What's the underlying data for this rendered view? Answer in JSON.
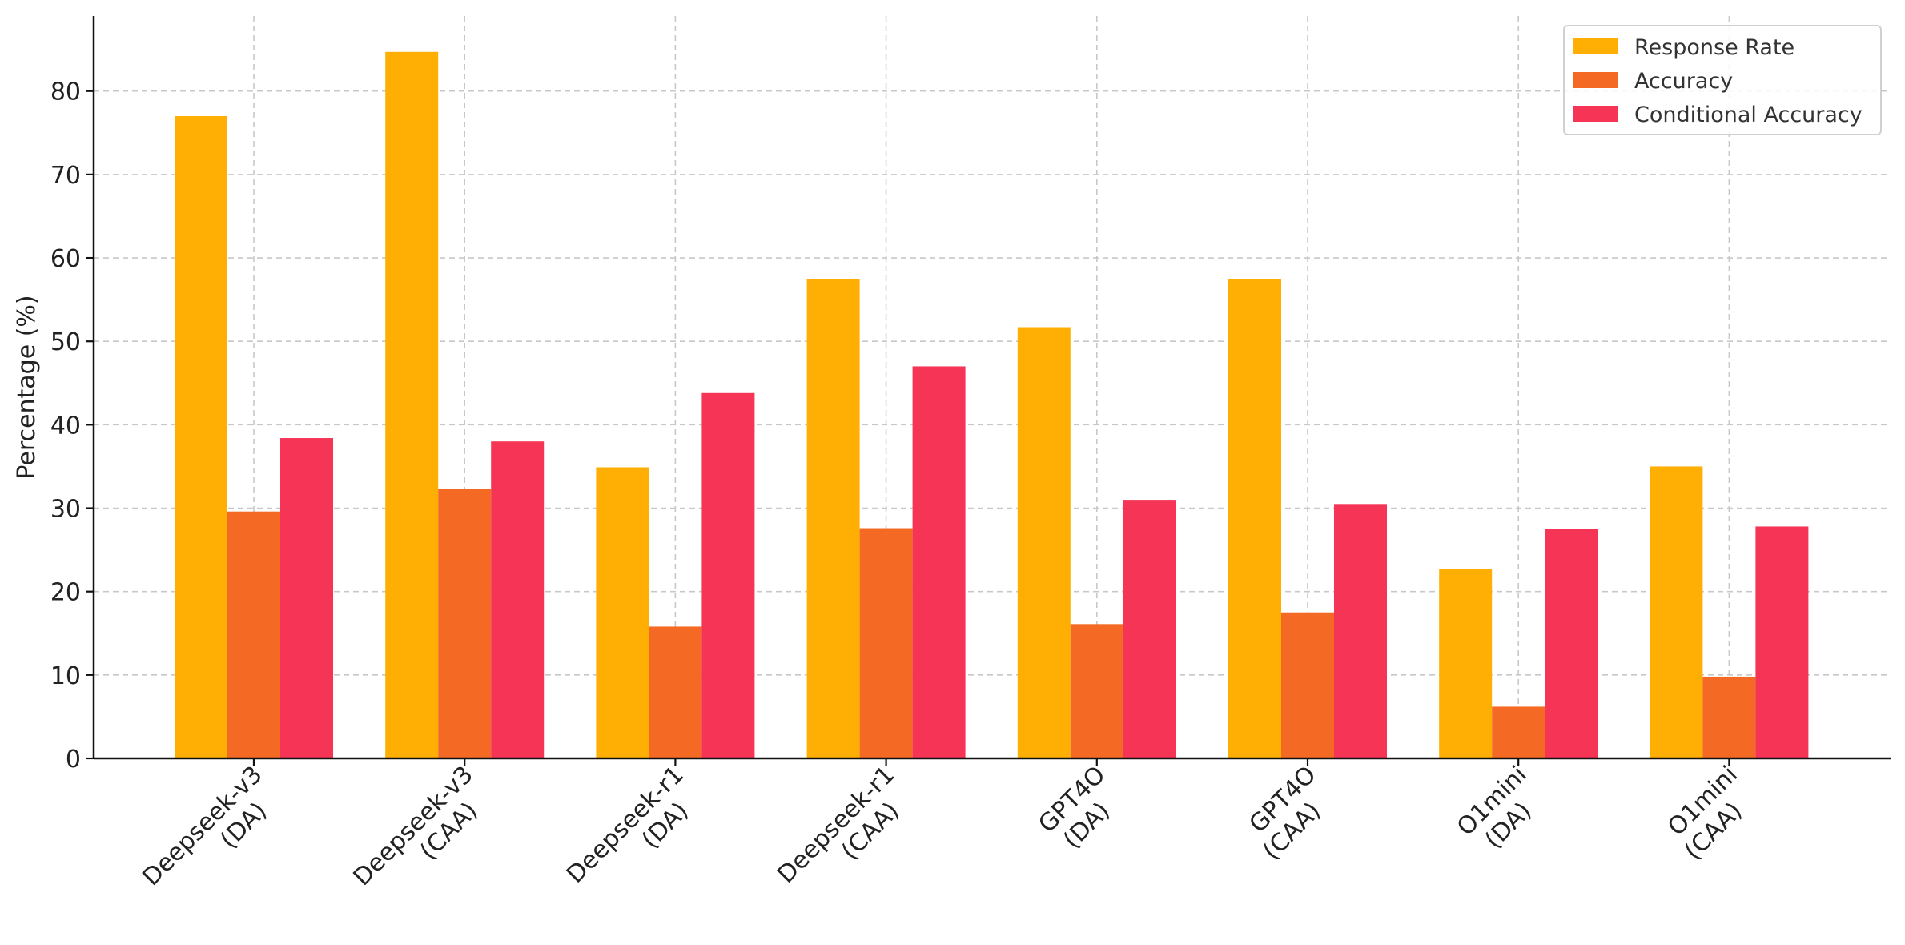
{
  "chart_data": {
    "type": "bar",
    "categories": [
      [
        "Deepseek-v3",
        "(DA)"
      ],
      [
        "Deepseek-v3",
        "(CAA)"
      ],
      [
        "Deepseek-r1",
        "(DA)"
      ],
      [
        "Deepseek-r1",
        "(CAA)"
      ],
      [
        "GPT4O",
        "(DA)"
      ],
      [
        "GPT4O",
        "(CAA)"
      ],
      [
        "O1mini",
        "(DA)"
      ],
      [
        "O1mini",
        "(CAA)"
      ]
    ],
    "series": [
      {
        "name": "Response Rate",
        "color": "#FFAE03",
        "values": [
          77.0,
          84.7,
          34.9,
          57.5,
          51.7,
          57.5,
          22.7,
          35.0
        ]
      },
      {
        "name": "Accuracy",
        "color": "#F46A25",
        "values": [
          29.6,
          32.3,
          15.8,
          27.6,
          16.1,
          17.5,
          6.2,
          9.8
        ]
      },
      {
        "name": "Conditional Accuracy",
        "color": "#F63456",
        "values": [
          38.4,
          38.0,
          43.8,
          47.0,
          31.0,
          30.5,
          27.5,
          27.8
        ]
      }
    ],
    "title": "",
    "xlabel": "",
    "ylabel": "Percentage (%)",
    "ylim": [
      0,
      89
    ],
    "yticks": [
      0,
      10,
      20,
      30,
      40,
      50,
      60,
      70,
      80
    ],
    "grid": true,
    "legend": "top-right"
  }
}
